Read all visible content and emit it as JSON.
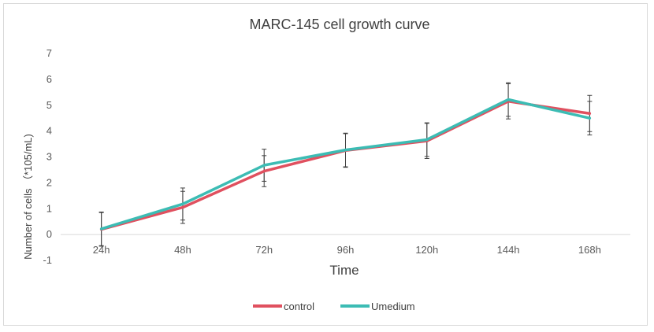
{
  "chart_data": {
    "type": "line",
    "title": "MARC-145 cell growth curve",
    "xlabel": "Time",
    "ylabel": "Number of cells （*105/mL)",
    "categories": [
      "24h",
      "48h",
      "72h",
      "96h",
      "120h",
      "144h",
      "168h"
    ],
    "ylim": [
      -1,
      7
    ],
    "yticks": [
      -1,
      0,
      1,
      2,
      3,
      4,
      5,
      6,
      7
    ],
    "grid": false,
    "legend_position": "bottom",
    "series": [
      {
        "name": "control",
        "color": "#e0505f",
        "values": [
          0.2,
          1.05,
          2.45,
          3.25,
          3.62,
          5.15,
          4.68
        ],
        "error": [
          0.65,
          0.62,
          0.6,
          0.65,
          0.68,
          0.68,
          0.7
        ]
      },
      {
        "name": "Umedium",
        "color": "#3cbcb4",
        "values": [
          0.22,
          1.18,
          2.68,
          3.27,
          3.67,
          5.22,
          4.5
        ],
        "error": [
          0.65,
          0.62,
          0.62,
          0.65,
          0.65,
          0.65,
          0.65
        ]
      }
    ]
  }
}
